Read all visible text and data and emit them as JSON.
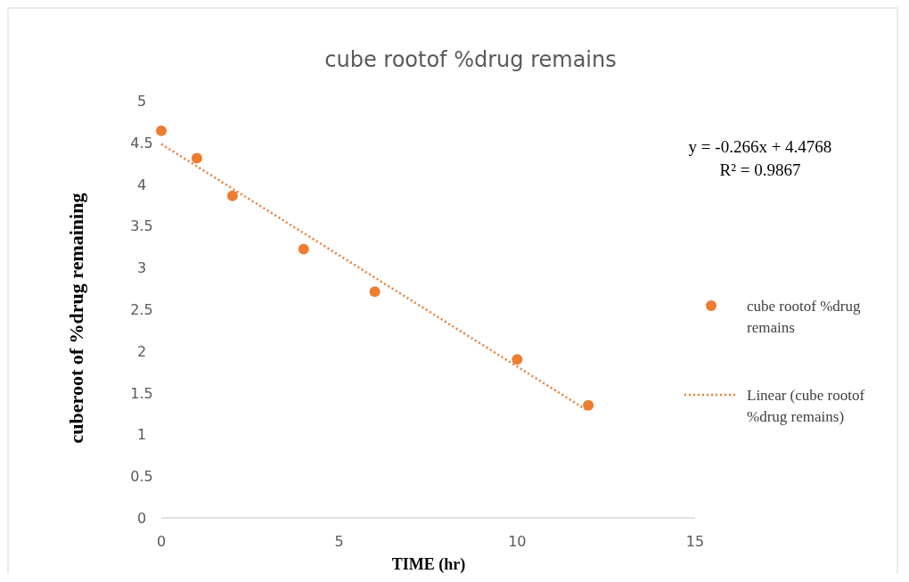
{
  "chart_data": {
    "type": "scatter",
    "title": "cube rootof %drug remains",
    "xlabel": "TIME  (hr)",
    "ylabel": "cuberoot of %drug remaining",
    "xlim": [
      0,
      15
    ],
    "xticks": [
      0,
      5,
      10,
      15
    ],
    "ylim": [
      0,
      5
    ],
    "yticks": [
      0,
      0.5,
      1,
      1.5,
      2,
      2.5,
      3,
      3.5,
      4,
      4.5,
      5
    ],
    "x": [
      0,
      1,
      2,
      4,
      6,
      10,
      12
    ],
    "series": [
      {
        "name": "cube rootof %drug remains",
        "color": "#ed7d31",
        "values": [
          4.64,
          4.31,
          3.86,
          3.22,
          2.71,
          1.9,
          1.35
        ],
        "marker": "circle"
      },
      {
        "name": "Linear (cube rootof %drug remains)",
        "color": "#ed7d31",
        "type": "line",
        "x": [
          0,
          12
        ],
        "values": [
          4.48,
          1.28
        ],
        "line_style": "dotted",
        "marker": "none"
      }
    ],
    "annotations": [
      "y = -0.266x + 4.4768",
      "R² = 0.9867"
    ],
    "legend": "right",
    "grid": false
  }
}
